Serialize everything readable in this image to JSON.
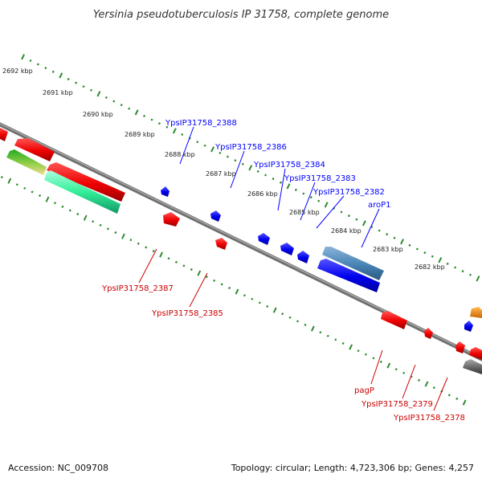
{
  "title": "Yersinia pseudotuberculosis IP 31758, complete genome",
  "footer": {
    "accession": "Accession: NC_009708",
    "stats": "Topology: circular; Length: 4,723,306 bp; Genes: 4,257"
  },
  "scale_labels": [
    "2692 kbp",
    "2691 kbp",
    "2690 kbp",
    "2689 kbp",
    "2688 kbp",
    "2687 kbp",
    "2686 kbp",
    "2685 kbp",
    "2684 kbp",
    "2683 kbp",
    "2682 kbp"
  ],
  "genes_forward": [
    "YpsIP31758_2388",
    "YpsIP31758_2386",
    "YpsIP31758_2384",
    "YpsIP31758_2383",
    "YpsIP31758_2382",
    "aroP1"
  ],
  "genes_reverse": [
    "YpsIP31758_2387",
    "YpsIP31758_2385",
    "pagP",
    "YpsIP31758_2379",
    "YpsIP31758_2378"
  ],
  "colors": {
    "forward": "#0000ff",
    "reverse": "#cc0000",
    "axis": "#808080",
    "tick": "#2e8b2e",
    "steelblue": "#4682b4",
    "teal": "#33dd99",
    "orange": "#ff8c00",
    "gray": "#666666"
  }
}
